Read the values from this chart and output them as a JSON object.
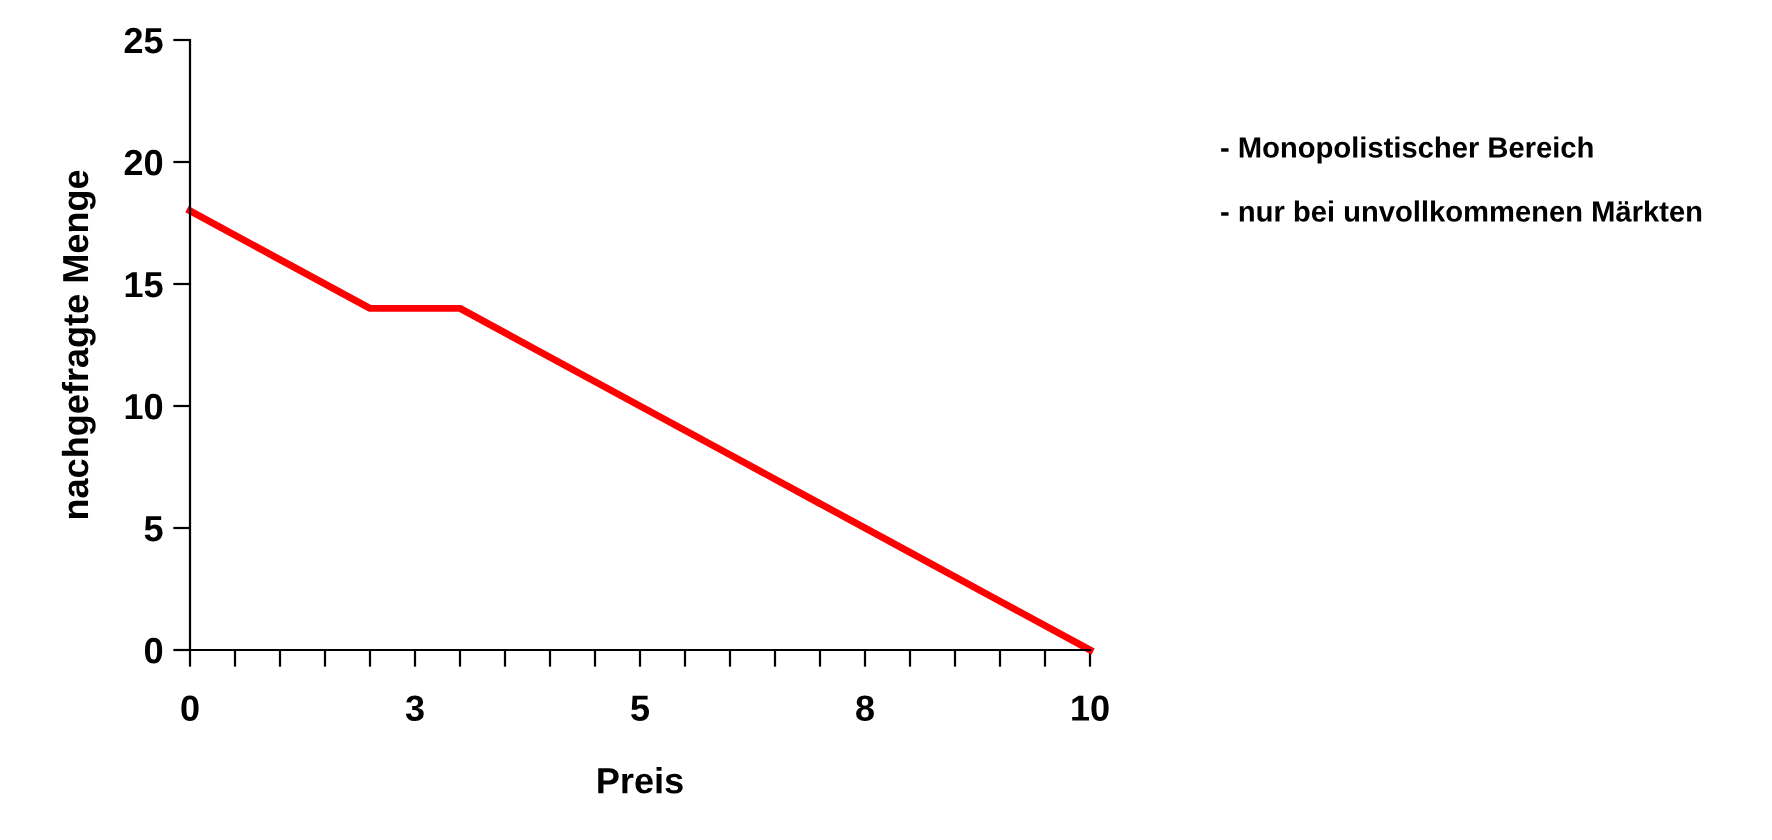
{
  "chart_data": {
    "type": "line",
    "xlabel": "Preis",
    "ylabel": "nachgefragte Menge",
    "x": [
      0,
      1,
      2,
      3,
      4,
      5,
      6,
      7,
      8,
      9,
      10
    ],
    "series": [
      {
        "color": "#ff0000",
        "values": [
          18,
          16,
          14,
          14,
          12,
          10,
          8,
          6,
          4,
          2,
          0
        ]
      }
    ],
    "xlim": [
      0,
      10
    ],
    "ylim": [
      0,
      25
    ],
    "xticks": [
      0,
      {
        "value": 0.5,
        "label": null
      },
      {
        "value": 1,
        "label": null
      },
      {
        "value": 1.5,
        "label": null
      },
      {
        "value": 2,
        "label": null
      },
      {
        "value": 2.5,
        "label": "3"
      },
      {
        "value": 3,
        "label": null
      },
      {
        "value": 3.5,
        "label": null
      },
      {
        "value": 4,
        "label": null
      },
      {
        "value": 4.5,
        "label": null
      },
      5,
      {
        "value": 5.5,
        "label": null
      },
      {
        "value": 6,
        "label": null
      },
      {
        "value": 6.5,
        "label": null
      },
      {
        "value": 7,
        "label": null
      },
      {
        "value": 7.5,
        "label": "8"
      },
      {
        "value": 8,
        "label": null
      },
      {
        "value": 8.5,
        "label": null
      },
      {
        "value": 9,
        "label": null
      },
      {
        "value": 9.5,
        "label": null
      },
      10
    ],
    "yticks": [
      0,
      5,
      10,
      15,
      20,
      25
    ],
    "grid": false,
    "marker": "none",
    "line_style": "solid",
    "annotations": [
      "- Monopolistischer Bereich",
      "- nur bei unvollkommenen Märkten"
    ]
  }
}
